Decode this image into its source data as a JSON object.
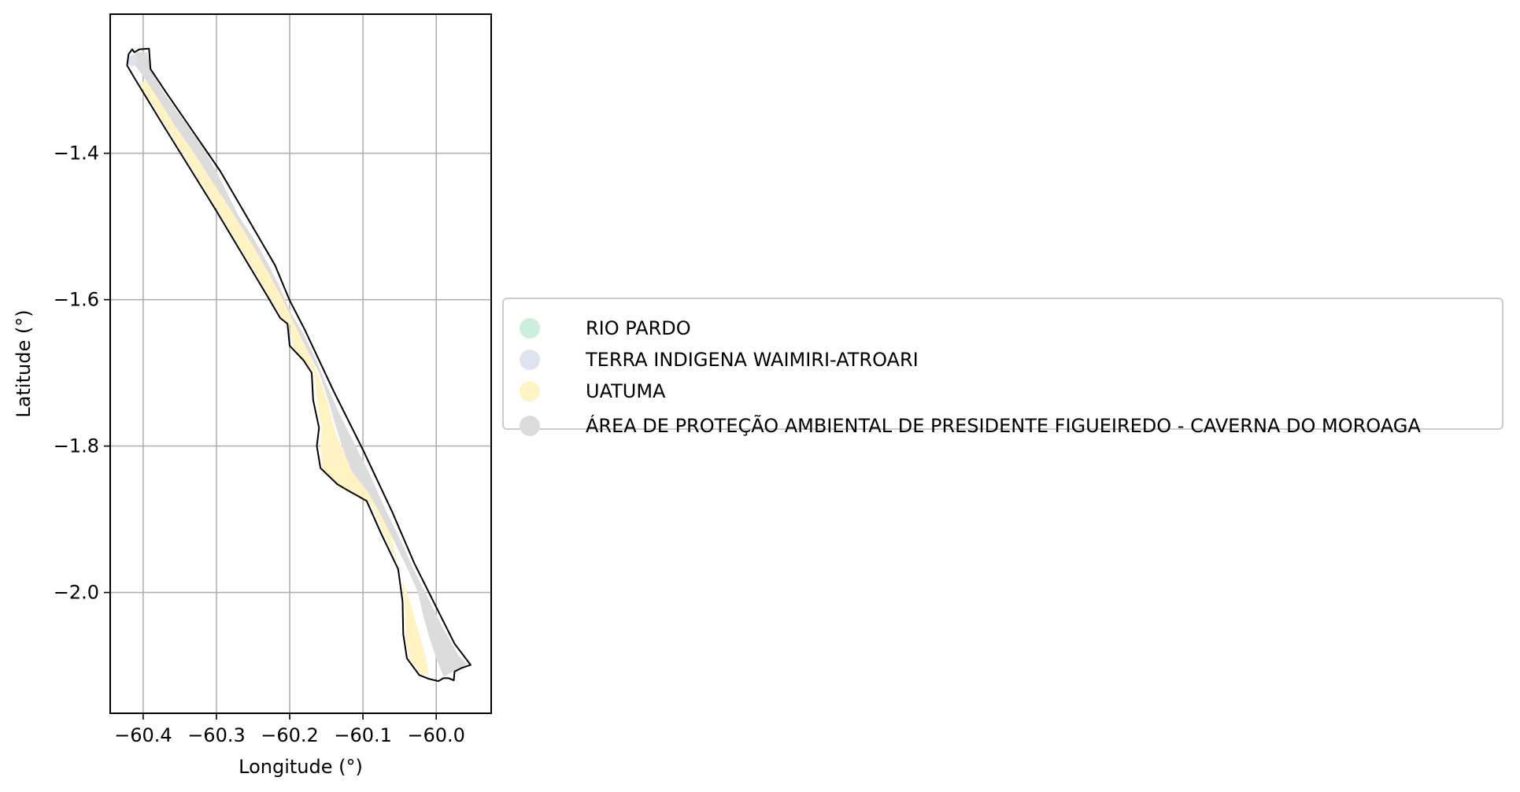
{
  "colors": {
    "rio_pardo": "#cdeedc",
    "terra_indigena": "#dde3f0",
    "uatuma": "#fff3c4",
    "apa": "#dcdcdc",
    "boundary": "#000000",
    "grid": "#b0b0b0"
  },
  "chart_data": {
    "type": "map",
    "xlabel": "Longitude (°)",
    "ylabel": "Latitude (°)",
    "xlim": [
      -60.445,
      -59.925
    ],
    "ylim": [
      -2.165,
      -1.21
    ],
    "grid": true,
    "legend_placement": "center-left-outside",
    "x_ticks": [
      {
        "value": -60.4,
        "label": "−60.4"
      },
      {
        "value": -60.3,
        "label": "−60.3"
      },
      {
        "value": -60.2,
        "label": "−60.2"
      },
      {
        "value": -60.1,
        "label": "−60.1"
      },
      {
        "value": -60.0,
        "label": "−60.0"
      }
    ],
    "y_ticks": [
      {
        "value": -1.4,
        "label": "−1.4"
      },
      {
        "value": -1.6,
        "label": "−1.6"
      },
      {
        "value": -1.8,
        "label": "−1.8"
      },
      {
        "value": -2.0,
        "label": "−2.0"
      }
    ],
    "categories": [
      {
        "name": "RIO PARDO",
        "color_key": "rio_pardo"
      },
      {
        "name": "TERRA INDIGENA WAIMIRI-ATROARI",
        "color_key": "terra_indigena"
      },
      {
        "name": "UATUMA",
        "color_key": "uatuma"
      },
      {
        "name": "ÁREA DE PROTEÇÃO AMBIENTAL DE PRESIDENTE FIGUEIREDO - CAVERNA DO MOROAGA",
        "color_key": "apa"
      }
    ],
    "boundary": [
      [
        -60.415,
        -1.258
      ],
      [
        -60.412,
        -1.262
      ],
      [
        -60.405,
        -1.258
      ],
      [
        -60.392,
        -1.257
      ],
      [
        -60.39,
        -1.285
      ],
      [
        -60.368,
        -1.318
      ],
      [
        -60.295,
        -1.424
      ],
      [
        -60.22,
        -1.553
      ],
      [
        -60.2,
        -1.601
      ],
      [
        -60.18,
        -1.64
      ],
      [
        -60.14,
        -1.725
      ],
      [
        -60.1,
        -1.805
      ],
      [
        -60.06,
        -1.89
      ],
      [
        -60.03,
        -1.96
      ],
      [
        -60.0,
        -2.02
      ],
      [
        -59.975,
        -2.07
      ],
      [
        -59.953,
        -2.099
      ],
      [
        -59.965,
        -2.103
      ],
      [
        -59.975,
        -2.108
      ],
      [
        -59.976,
        -2.12
      ],
      [
        -59.983,
        -2.117
      ],
      [
        -59.99,
        -2.117
      ],
      [
        -59.997,
        -2.121
      ],
      [
        -60.01,
        -2.118
      ],
      [
        -60.023,
        -2.113
      ],
      [
        -60.04,
        -2.09
      ],
      [
        -60.045,
        -2.057
      ],
      [
        -60.046,
        -2.012
      ],
      [
        -60.052,
        -1.968
      ],
      [
        -60.075,
        -1.92
      ],
      [
        -60.095,
        -1.875
      ],
      [
        -60.12,
        -1.861
      ],
      [
        -60.135,
        -1.852
      ],
      [
        -60.158,
        -1.83
      ],
      [
        -60.163,
        -1.8
      ],
      [
        -60.16,
        -1.775
      ],
      [
        -60.168,
        -1.737
      ],
      [
        -60.17,
        -1.7
      ],
      [
        -60.181,
        -1.683
      ],
      [
        -60.2,
        -1.663
      ],
      [
        -60.203,
        -1.633
      ],
      [
        -60.213,
        -1.625
      ],
      [
        -60.23,
        -1.596
      ],
      [
        -60.3,
        -1.479
      ],
      [
        -60.375,
        -1.358
      ],
      [
        -60.395,
        -1.325
      ],
      [
        -60.412,
        -1.297
      ],
      [
        -60.422,
        -1.28
      ],
      [
        -60.42,
        -1.265
      ]
    ],
    "areas": [
      {
        "color_key": "uatuma",
        "points": [
          [
            -60.395,
            -1.3
          ],
          [
            -60.375,
            -1.33
          ],
          [
            -60.35,
            -1.37
          ],
          [
            -60.325,
            -1.405
          ],
          [
            -60.3,
            -1.44
          ],
          [
            -60.285,
            -1.47
          ],
          [
            -60.265,
            -1.5
          ],
          [
            -60.245,
            -1.53
          ],
          [
            -60.228,
            -1.56
          ],
          [
            -60.21,
            -1.59
          ],
          [
            -60.195,
            -1.625
          ],
          [
            -60.18,
            -1.66
          ],
          [
            -60.162,
            -1.7
          ],
          [
            -60.148,
            -1.74
          ],
          [
            -60.138,
            -1.78
          ],
          [
            -60.125,
            -1.81
          ],
          [
            -60.1,
            -1.845
          ],
          [
            -60.08,
            -1.875
          ],
          [
            -60.065,
            -1.91
          ],
          [
            -60.055,
            -1.95
          ],
          [
            -60.045,
            -1.985
          ],
          [
            -60.035,
            -2.015
          ],
          [
            -60.025,
            -2.05
          ],
          [
            -60.015,
            -2.085
          ],
          [
            -60.01,
            -2.11
          ],
          [
            -60.02,
            -2.112
          ],
          [
            -60.036,
            -2.092
          ],
          [
            -60.042,
            -2.06
          ],
          [
            -60.043,
            -2.015
          ],
          [
            -60.048,
            -1.97
          ],
          [
            -60.07,
            -1.922
          ],
          [
            -60.09,
            -1.878
          ],
          [
            -60.118,
            -1.864
          ],
          [
            -60.135,
            -1.855
          ],
          [
            -60.155,
            -1.832
          ],
          [
            -60.158,
            -1.8
          ],
          [
            -60.156,
            -1.775
          ],
          [
            -60.163,
            -1.74
          ],
          [
            -60.166,
            -1.7
          ],
          [
            -60.178,
            -1.685
          ],
          [
            -60.196,
            -1.665
          ],
          [
            -60.199,
            -1.635
          ],
          [
            -60.21,
            -1.626
          ],
          [
            -60.227,
            -1.597
          ],
          [
            -60.297,
            -1.48
          ],
          [
            -60.372,
            -1.358
          ],
          [
            -60.392,
            -1.326
          ],
          [
            -60.405,
            -1.305
          ]
        ]
      },
      {
        "color_key": "apa",
        "points": [
          [
            -60.41,
            -1.262
          ],
          [
            -60.395,
            -1.262
          ],
          [
            -60.388,
            -1.29
          ],
          [
            -60.37,
            -1.32
          ],
          [
            -60.345,
            -1.355
          ],
          [
            -60.32,
            -1.39
          ],
          [
            -60.3,
            -1.425
          ],
          [
            -60.285,
            -1.455
          ],
          [
            -60.27,
            -1.485
          ],
          [
            -60.25,
            -1.515
          ],
          [
            -60.23,
            -1.55
          ],
          [
            -60.215,
            -1.58
          ],
          [
            -60.2,
            -1.615
          ],
          [
            -60.182,
            -1.645
          ],
          [
            -60.165,
            -1.68
          ],
          [
            -60.148,
            -1.72
          ],
          [
            -60.13,
            -1.76
          ],
          [
            -60.11,
            -1.8
          ],
          [
            -60.09,
            -1.84
          ],
          [
            -60.07,
            -1.885
          ],
          [
            -60.048,
            -1.93
          ],
          [
            -60.03,
            -1.97
          ],
          [
            -60.01,
            -2.01
          ],
          [
            -59.99,
            -2.05
          ],
          [
            -59.97,
            -2.085
          ],
          [
            -59.958,
            -2.098
          ],
          [
            -59.975,
            -2.107
          ],
          [
            -59.99,
            -2.115
          ],
          [
            -60.0,
            -2.09
          ],
          [
            -60.01,
            -2.06
          ],
          [
            -60.018,
            -2.03
          ],
          [
            -60.025,
            -2.0
          ],
          [
            -60.038,
            -1.97
          ],
          [
            -60.055,
            -1.935
          ],
          [
            -60.075,
            -1.895
          ],
          [
            -60.095,
            -1.86
          ],
          [
            -60.115,
            -1.835
          ],
          [
            -60.125,
            -1.81
          ],
          [
            -60.138,
            -1.77
          ],
          [
            -60.148,
            -1.735
          ],
          [
            -60.16,
            -1.7
          ],
          [
            -60.178,
            -1.665
          ],
          [
            -60.195,
            -1.63
          ],
          [
            -60.212,
            -1.595
          ],
          [
            -60.228,
            -1.565
          ],
          [
            -60.245,
            -1.535
          ],
          [
            -60.265,
            -1.502
          ],
          [
            -60.285,
            -1.47
          ],
          [
            -60.305,
            -1.44
          ],
          [
            -60.33,
            -1.4
          ],
          [
            -60.355,
            -1.365
          ],
          [
            -60.38,
            -1.325
          ],
          [
            -60.4,
            -1.295
          ],
          [
            -60.415,
            -1.275
          ]
        ]
      },
      {
        "color_key": "terra_indigena",
        "points": [
          [
            -60.419,
            -1.268
          ],
          [
            -60.412,
            -1.264
          ],
          [
            -60.408,
            -1.272
          ],
          [
            -60.413,
            -1.282
          ],
          [
            -60.421,
            -1.279
          ]
        ]
      }
    ]
  }
}
